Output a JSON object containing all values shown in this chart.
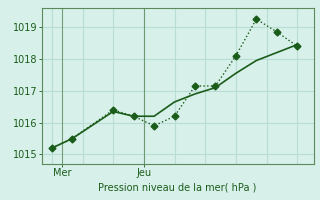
{
  "line1_x": [
    0,
    1,
    3,
    4,
    5,
    6,
    7,
    8,
    9,
    10,
    11,
    12
  ],
  "line1_y": [
    1015.2,
    1015.5,
    1016.4,
    1016.2,
    1015.9,
    1016.2,
    1017.15,
    1017.15,
    1018.1,
    1019.25,
    1018.85,
    1018.4
  ],
  "line2_x": [
    0,
    1,
    3,
    4,
    5,
    6,
    7,
    8,
    9,
    10,
    11,
    12
  ],
  "line2_y": [
    1015.2,
    1015.5,
    1016.35,
    1016.2,
    1016.2,
    1016.65,
    1016.9,
    1017.1,
    1017.55,
    1017.95,
    1018.2,
    1018.45
  ],
  "line_color": "#1a5c1a",
  "background_color": "#d8f0ea",
  "grid_color": "#b8ddd5",
  "axis_line_color": "#5a8a5a",
  "xlabel": "Pression niveau de la mer( hPa )",
  "xlabel_color": "#1a5c1a",
  "yticks": [
    1015,
    1016,
    1017,
    1018,
    1019
  ],
  "ylim": [
    1014.7,
    1019.6
  ],
  "xlim": [
    -0.5,
    12.8
  ],
  "mer_x": 0.5,
  "jeu_x": 4.5,
  "tick_color": "#1a5c1a",
  "tick_fontsize": 7,
  "xlabel_fontsize": 7,
  "marker_size": 3.5,
  "linewidth1": 1.0,
  "linewidth2": 1.2,
  "vline_color": "#5a8a5a",
  "vline_alpha": 0.8
}
